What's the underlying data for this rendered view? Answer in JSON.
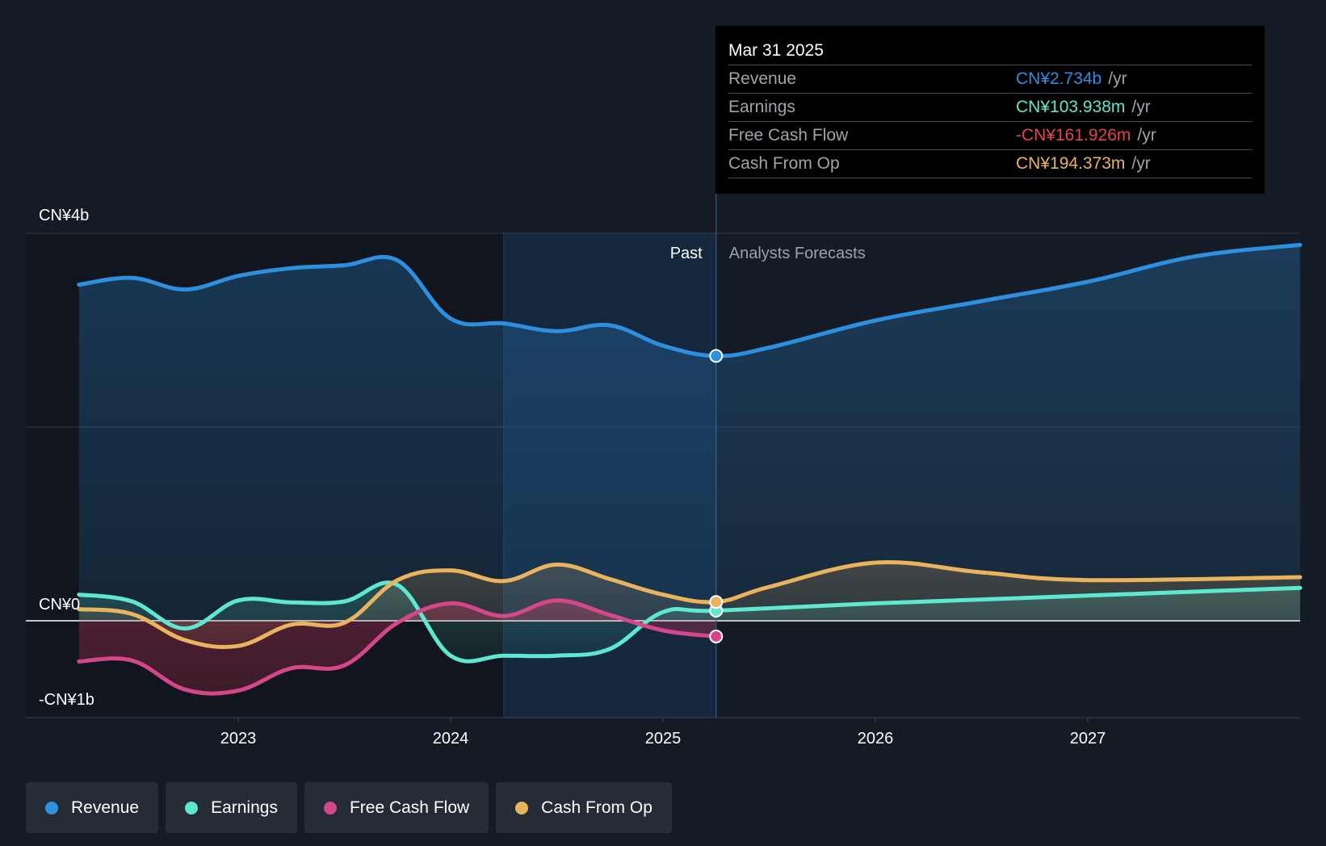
{
  "chart_data": {
    "type": "line",
    "y_unit": "CN¥ billions",
    "ylim": [
      -1.25,
      4.0
    ],
    "xlim": [
      2022.0,
      2028.0
    ],
    "y_axis_labels": [
      {
        "value": 4.0,
        "label": "CN¥4b"
      },
      {
        "value": 0.0,
        "label": "CN¥0"
      },
      {
        "value": -1.0,
        "label": "-CN¥1b"
      }
    ],
    "gridlines": [
      4.0,
      2.0,
      0.0
    ],
    "x_ticks": [
      {
        "value": 2023.0,
        "label": "2023"
      },
      {
        "value": 2024.0,
        "label": "2024"
      },
      {
        "value": 2025.0,
        "label": "2025"
      },
      {
        "value": 2026.0,
        "label": "2026"
      },
      {
        "value": 2027.0,
        "label": "2027"
      }
    ],
    "past_label": "Past",
    "forecast_label": "Analysts Forecasts",
    "highlight_start_x": 2024.25,
    "divider_x": 2025.25,
    "series": [
      {
        "name": "Revenue",
        "color": "#2d8fe0",
        "points": [
          [
            2022.25,
            3.47
          ],
          [
            2022.5,
            3.54
          ],
          [
            2022.75,
            3.42
          ],
          [
            2023.0,
            3.56
          ],
          [
            2023.25,
            3.64
          ],
          [
            2023.5,
            3.67
          ],
          [
            2023.75,
            3.72
          ],
          [
            2024.0,
            3.12
          ],
          [
            2024.25,
            3.07
          ],
          [
            2024.5,
            2.99
          ],
          [
            2024.75,
            3.05
          ],
          [
            2025.0,
            2.84
          ],
          [
            2025.25,
            2.734
          ]
        ],
        "forecast": [
          [
            2025.25,
            2.734
          ],
          [
            2025.5,
            2.82
          ],
          [
            2026.0,
            3.1
          ],
          [
            2026.5,
            3.3
          ],
          [
            2027.0,
            3.5
          ],
          [
            2027.5,
            3.76
          ],
          [
            2028.0,
            3.88
          ]
        ]
      },
      {
        "name": "Earnings",
        "color": "#5ee8cf",
        "points": [
          [
            2022.25,
            0.27
          ],
          [
            2022.5,
            0.2
          ],
          [
            2022.75,
            -0.08
          ],
          [
            2023.0,
            0.21
          ],
          [
            2023.25,
            0.19
          ],
          [
            2023.5,
            0.2
          ],
          [
            2023.75,
            0.37
          ],
          [
            2024.0,
            -0.36
          ],
          [
            2024.25,
            -0.36
          ],
          [
            2024.5,
            -0.36
          ],
          [
            2024.75,
            -0.29
          ],
          [
            2025.0,
            0.09
          ],
          [
            2025.25,
            0.104
          ]
        ],
        "forecast": [
          [
            2025.25,
            0.104
          ],
          [
            2026.0,
            0.18
          ],
          [
            2027.0,
            0.26
          ],
          [
            2028.0,
            0.34
          ]
        ]
      },
      {
        "name": "Free Cash Flow",
        "color": "#d6468b",
        "points": [
          [
            2022.25,
            -0.42
          ],
          [
            2022.5,
            -0.41
          ],
          [
            2022.75,
            -0.71
          ],
          [
            2023.0,
            -0.72
          ],
          [
            2023.25,
            -0.49
          ],
          [
            2023.5,
            -0.46
          ],
          [
            2023.75,
            -0.02
          ],
          [
            2024.0,
            0.18
          ],
          [
            2024.25,
            0.05
          ],
          [
            2024.5,
            0.21
          ],
          [
            2024.75,
            0.06
          ],
          [
            2025.0,
            -0.1
          ],
          [
            2025.25,
            -0.162
          ]
        ]
      },
      {
        "name": "Cash From Op",
        "color": "#eab35e",
        "points": [
          [
            2022.25,
            0.12
          ],
          [
            2022.5,
            0.07
          ],
          [
            2022.75,
            -0.2
          ],
          [
            2023.0,
            -0.26
          ],
          [
            2023.25,
            -0.04
          ],
          [
            2023.5,
            -0.02
          ],
          [
            2023.75,
            0.42
          ],
          [
            2024.0,
            0.52
          ],
          [
            2024.25,
            0.41
          ],
          [
            2024.5,
            0.58
          ],
          [
            2024.75,
            0.43
          ],
          [
            2025.0,
            0.27
          ],
          [
            2025.25,
            0.194
          ]
        ],
        "forecast": [
          [
            2025.25,
            0.194
          ],
          [
            2025.5,
            0.35
          ],
          [
            2026.0,
            0.6
          ],
          [
            2026.5,
            0.5
          ],
          [
            2027.0,
            0.42
          ],
          [
            2028.0,
            0.45
          ]
        ]
      }
    ]
  },
  "tooltip": {
    "date": "Mar 31 2025",
    "rows": [
      {
        "name": "Revenue",
        "value": "CN¥2.734b",
        "unit": "/yr",
        "color": "#2d8fe0"
      },
      {
        "name": "Earnings",
        "value": "CN¥103.938m",
        "unit": "/yr",
        "color": "#5ee8cf"
      },
      {
        "name": "Free Cash Flow",
        "value": "-CN¥161.926m",
        "unit": "/yr",
        "color": "#e84448"
      },
      {
        "name": "Cash From Op",
        "value": "CN¥194.373m",
        "unit": "/yr",
        "color": "#eab35e"
      }
    ]
  },
  "legend": [
    {
      "label": "Revenue",
      "color": "#2d8fe0"
    },
    {
      "label": "Earnings",
      "color": "#5ee8cf"
    },
    {
      "label": "Free Cash Flow",
      "color": "#d6468b"
    },
    {
      "label": "Cash From Op",
      "color": "#eab35e"
    }
  ]
}
